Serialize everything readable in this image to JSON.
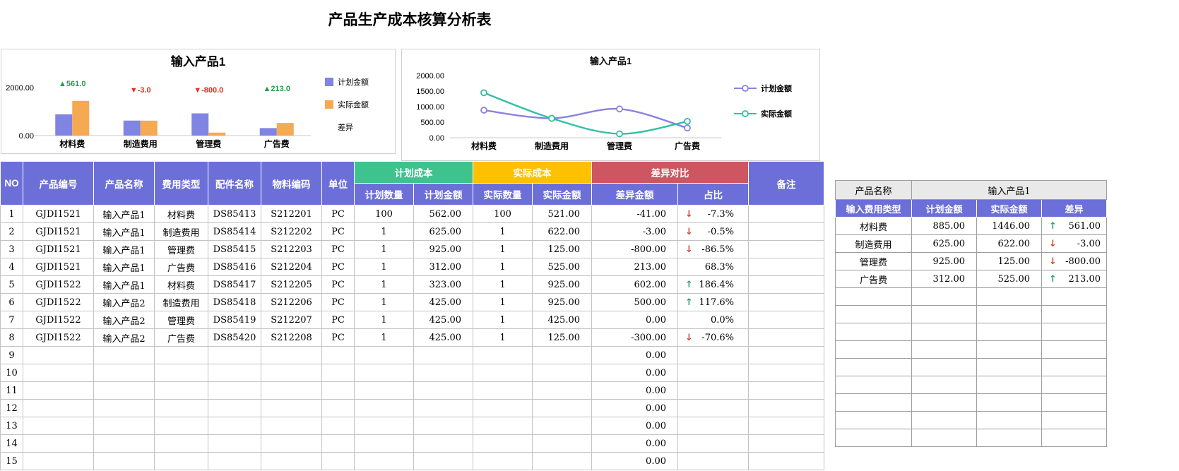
{
  "title": "产品生产成本核算分析表",
  "chart_data": [
    {
      "type": "bar",
      "title": "输入产品1",
      "categories": [
        "材料费",
        "制造费用",
        "管理费",
        "广告费"
      ],
      "series": [
        {
          "name": "计划金额",
          "values": [
            885,
            625,
            925,
            312
          ],
          "color": "#8084e2"
        },
        {
          "name": "实际金额",
          "values": [
            1446,
            622,
            125,
            525
          ],
          "color": "#f6a953"
        }
      ],
      "annotations": [
        {
          "text": "▲561.0",
          "dir": "up"
        },
        {
          "text": "▼-3.0",
          "dir": "down"
        },
        {
          "text": "▼-800.0",
          "dir": "down"
        },
        {
          "text": "▲213.0",
          "dir": "up"
        }
      ],
      "legend": [
        "计划金额",
        "实际金额",
        "差异"
      ],
      "legend_position": "right",
      "ylim": [
        0,
        2000
      ],
      "y_tick_labels": [
        "0.00",
        "2000.00"
      ],
      "grid": false
    },
    {
      "type": "line",
      "title": "输入产品1",
      "categories": [
        "材料费",
        "制造费用",
        "管理费",
        "广告费"
      ],
      "series": [
        {
          "name": "计划金额",
          "values": [
            885,
            625,
            925,
            312
          ],
          "color": "#8a82e0"
        },
        {
          "name": "实际金额",
          "values": [
            1446,
            622,
            125,
            525
          ],
          "color": "#2fc0a4"
        }
      ],
      "legend_position": "right",
      "ylim": [
        0,
        2000
      ],
      "y_tick_labels": [
        "0.00",
        "500.00",
        "1000.00",
        "1500.00",
        "2000.00"
      ],
      "grid": false
    }
  ],
  "main_table": {
    "columns": [
      "NO",
      "产品编号",
      "产品名称",
      "费用类型",
      "配件名称",
      "物料编码",
      "单位",
      "计划数量",
      "计划金额",
      "实际数量",
      "实际金额",
      "差异金额",
      "占比",
      "备注"
    ],
    "groups": [
      {
        "label": "计划成本",
        "color": "#3ec28e"
      },
      {
        "label": "实际成本",
        "color": "#ffc000"
      },
      {
        "label": "差异对比",
        "color": "#cd5660"
      }
    ],
    "rows": [
      {
        "no": "1",
        "code": "GJDI1521",
        "name": "输入产品1",
        "fee": "材料费",
        "part": "DS85413",
        "mat": "S212201",
        "unit": "PC",
        "pqty": "100",
        "pamt": "562.00",
        "aqty": "100",
        "aamt": "521.00",
        "diff": "-41.00",
        "ratio": "-7.3%",
        "dir": "down",
        "remark": ""
      },
      {
        "no": "2",
        "code": "GJDI1521",
        "name": "输入产品1",
        "fee": "制造费用",
        "part": "DS85414",
        "mat": "S212202",
        "unit": "PC",
        "pqty": "1",
        "pamt": "625.00",
        "aqty": "1",
        "aamt": "622.00",
        "diff": "-3.00",
        "ratio": "-0.5%",
        "dir": "down",
        "remark": ""
      },
      {
        "no": "3",
        "code": "GJDI1521",
        "name": "输入产品1",
        "fee": "管理费",
        "part": "DS85415",
        "mat": "S212203",
        "unit": "PC",
        "pqty": "1",
        "pamt": "925.00",
        "aqty": "1",
        "aamt": "125.00",
        "diff": "-800.00",
        "ratio": "-86.5%",
        "dir": "down",
        "remark": ""
      },
      {
        "no": "4",
        "code": "GJDI1521",
        "name": "输入产品1",
        "fee": "广告费",
        "part": "DS85416",
        "mat": "S212204",
        "unit": "PC",
        "pqty": "1",
        "pamt": "312.00",
        "aqty": "1",
        "aamt": "525.00",
        "diff": "213.00",
        "ratio": "68.3%",
        "dir": "none",
        "remark": ""
      },
      {
        "no": "5",
        "code": "GJDI1522",
        "name": "输入产品1",
        "fee": "材料费",
        "part": "DS85417",
        "mat": "S212205",
        "unit": "PC",
        "pqty": "1",
        "pamt": "323.00",
        "aqty": "1",
        "aamt": "925.00",
        "diff": "602.00",
        "ratio": "186.4%",
        "dir": "up",
        "remark": ""
      },
      {
        "no": "6",
        "code": "GJDI1522",
        "name": "输入产品2",
        "fee": "制造费用",
        "part": "DS85418",
        "mat": "S212206",
        "unit": "PC",
        "pqty": "1",
        "pamt": "425.00",
        "aqty": "1",
        "aamt": "925.00",
        "diff": "500.00",
        "ratio": "117.6%",
        "dir": "up",
        "remark": ""
      },
      {
        "no": "7",
        "code": "GJDI1522",
        "name": "输入产品2",
        "fee": "管理费",
        "part": "DS85419",
        "mat": "S212207",
        "unit": "PC",
        "pqty": "1",
        "pamt": "425.00",
        "aqty": "1",
        "aamt": "425.00",
        "diff": "0.00",
        "ratio": "0.0%",
        "dir": "none",
        "remark": ""
      },
      {
        "no": "8",
        "code": "GJDI1522",
        "name": "输入产品2",
        "fee": "广告费",
        "part": "DS85420",
        "mat": "S212208",
        "unit": "PC",
        "pqty": "1",
        "pamt": "425.00",
        "aqty": "1",
        "aamt": "125.00",
        "diff": "-300.00",
        "ratio": "-70.6%",
        "dir": "down",
        "remark": ""
      },
      {
        "no": "9",
        "diff": "0.00",
        "dir": "none"
      },
      {
        "no": "10",
        "diff": "0.00",
        "dir": "none"
      },
      {
        "no": "11",
        "diff": "0.00",
        "dir": "none"
      },
      {
        "no": "12",
        "diff": "0.00",
        "dir": "none"
      },
      {
        "no": "13",
        "diff": "0.00",
        "dir": "none"
      },
      {
        "no": "14",
        "diff": "0.00",
        "dir": "none"
      },
      {
        "no": "15",
        "diff": "0.00",
        "dir": "none"
      }
    ]
  },
  "summary_table": {
    "corner_label": "产品名称",
    "product_label": "输入产品1",
    "columns": [
      "输入费用类型",
      "计划金额",
      "实际金额",
      "差异"
    ],
    "rows": [
      {
        "fee": "材料费",
        "plan": "885.00",
        "actual": "1446.00",
        "diff": "561.00",
        "dir": "up"
      },
      {
        "fee": "制造费用",
        "plan": "625.00",
        "actual": "622.00",
        "diff": "-3.00",
        "dir": "down"
      },
      {
        "fee": "管理费",
        "plan": "925.00",
        "actual": "125.00",
        "diff": "-800.00",
        "dir": "down"
      },
      {
        "fee": "广告费",
        "plan": "312.00",
        "actual": "525.00",
        "diff": "213.00",
        "dir": "up"
      }
    ],
    "empty_row_count": 9
  },
  "colors": {
    "header_purple": "#6c6fd8",
    "group_green": "#3ec28e",
    "group_amber": "#ffc000",
    "group_red": "#cd5660",
    "arrow_up": "#2e9e6e",
    "arrow_down": "#cf4a32",
    "annotation_up": "#1f9e3f",
    "annotation_down": "#e0301e"
  },
  "icons": {
    "up": "↑",
    "down": "↓"
  }
}
